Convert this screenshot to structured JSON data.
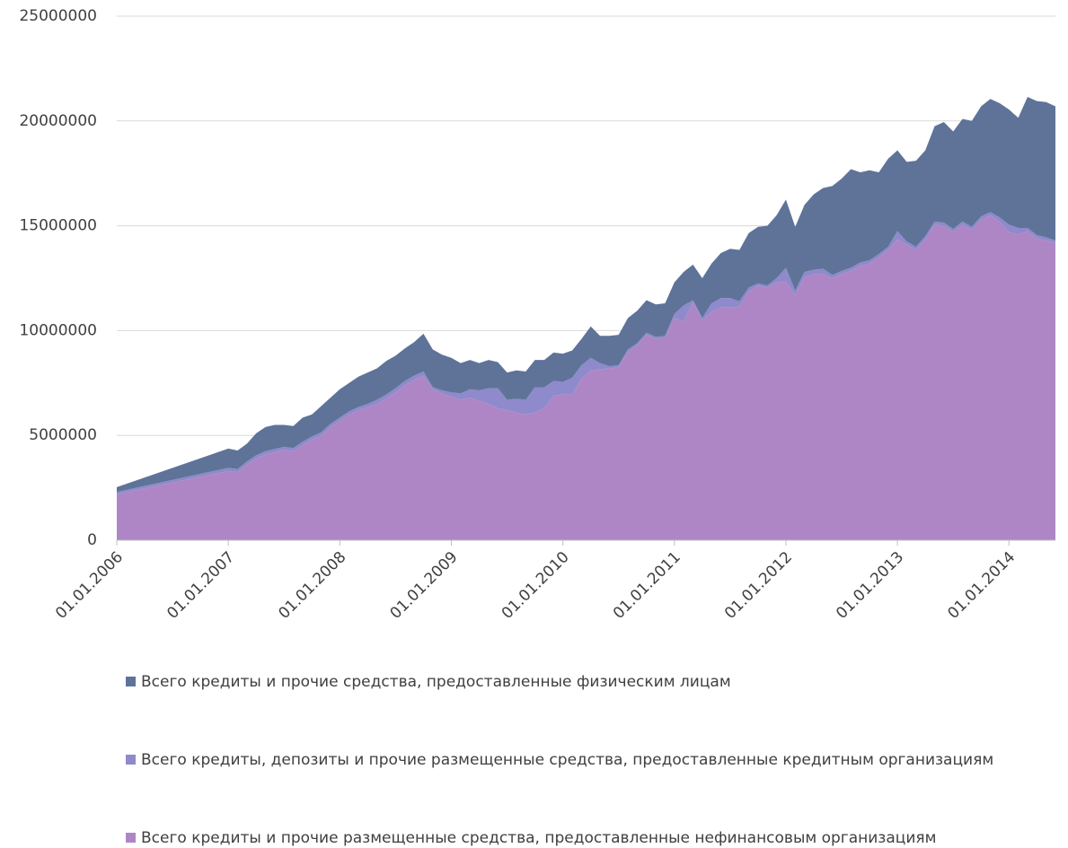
{
  "chart_data": {
    "type": "area",
    "stacked": true,
    "x": [
      "01.01.2006",
      "01.01.2007",
      "01.02.2007",
      "01.03.2007",
      "01.04.2007",
      "01.05.2007",
      "01.06.2007",
      "01.07.2007",
      "01.08.2007",
      "01.09.2007",
      "01.10.2007",
      "01.11.2007",
      "01.12.2007",
      "01.01.2008",
      "01.02.2008",
      "01.03.2008",
      "01.04.2008",
      "01.05.2008",
      "01.06.2008",
      "01.07.2008",
      "01.08.2008",
      "01.09.2008",
      "01.10.2008",
      "01.11.2008",
      "01.12.2008",
      "01.01.2009",
      "01.02.2009",
      "01.03.2009",
      "01.04.2009",
      "01.05.2009",
      "01.06.2009",
      "01.07.2009",
      "01.08.2009",
      "01.09.2009",
      "01.10.2009",
      "01.11.2009",
      "01.12.2009",
      "01.01.2010",
      "01.02.2010",
      "01.03.2010",
      "01.04.2010",
      "01.05.2010",
      "01.06.2010",
      "01.07.2010",
      "01.08.2010",
      "01.09.2010",
      "01.10.2010",
      "01.11.2010",
      "01.12.2010",
      "01.01.2011",
      "01.02.2011",
      "01.03.2011",
      "01.04.2011",
      "01.05.2011",
      "01.06.2011",
      "01.07.2011",
      "01.08.2011",
      "01.09.2011",
      "01.10.2011",
      "01.11.2011",
      "01.12.2011",
      "01.01.2012",
      "01.02.2012",
      "01.03.2012",
      "01.04.2012",
      "01.05.2012",
      "01.06.2012",
      "01.07.2012",
      "01.08.2012",
      "01.09.2012",
      "01.10.2012",
      "01.11.2012",
      "01.12.2012",
      "01.01.2013",
      "01.02.2013",
      "01.03.2013",
      "01.04.2013",
      "01.05.2013",
      "01.06.2013",
      "01.07.2013",
      "01.08.2013",
      "01.09.2013",
      "01.10.2013",
      "01.11.2013",
      "01.12.2013",
      "01.01.2014",
      "01.02.2014",
      "01.03.2014",
      "01.04.2014",
      "01.05.2014",
      "01.06.2014"
    ],
    "xlim": [
      "01.01.2006",
      "01.06.2014"
    ],
    "xticks": [
      "01.01.2006",
      "01.01.2007",
      "01.01.2008",
      "01.01.2009",
      "01.01.2010",
      "01.01.2011",
      "01.01.2012",
      "01.01.2013",
      "01.01.2014"
    ],
    "ylim": [
      0,
      25000000
    ],
    "yticks": [
      0,
      5000000,
      10000000,
      15000000,
      20000000,
      25000000
    ],
    "grid": true,
    "legend": "bottom",
    "series": [
      {
        "name": "Всего кредиты и прочие средства, предоставленные физическим лицам",
        "color": "#5f7399",
        "values": [
          230000,
          920000,
          880000,
          850000,
          1050000,
          1150000,
          1150000,
          1050000,
          1050000,
          1150000,
          1050000,
          1250000,
          1250000,
          1350000,
          1350000,
          1450000,
          1500000,
          1500000,
          1600000,
          1550000,
          1550000,
          1600000,
          1800000,
          1800000,
          1700000,
          1650000,
          1450000,
          1400000,
          1300000,
          1350000,
          1250000,
          1300000,
          1350000,
          1350000,
          1300000,
          1300000,
          1350000,
          1350000,
          1300000,
          1250000,
          1500000,
          1300000,
          1450000,
          1450000,
          1500000,
          1550000,
          1550000,
          1550000,
          1550000,
          1500000,
          1600000,
          1700000,
          1900000,
          1900000,
          2150000,
          2350000,
          2450000,
          2600000,
          2700000,
          2850000,
          3000000,
          3250000,
          3050000,
          3200000,
          3600000,
          3850000,
          4250000,
          4400000,
          4700000,
          4300000,
          4300000,
          3900000,
          4200000,
          3850000,
          3800000,
          4100000,
          4100000,
          4550000,
          4800000,
          4650000,
          4900000,
          5050000,
          5250000,
          5400000,
          5450000,
          5500000,
          5250000,
          6250000,
          6400000,
          6450000,
          6400000
        ]
      },
      {
        "name": "Всего кредиты, депозиты и прочие размещенные средства, предоставленные кредитным организациям",
        "color": "#8e8acb",
        "values": [
          100000,
          150000,
          150000,
          150000,
          150000,
          150000,
          150000,
          150000,
          150000,
          150000,
          150000,
          150000,
          150000,
          150000,
          150000,
          150000,
          150000,
          200000,
          200000,
          200000,
          200000,
          200000,
          200000,
          100000,
          150000,
          200000,
          300000,
          400000,
          500000,
          750000,
          950000,
          500000,
          650000,
          700000,
          1200000,
          1000000,
          700000,
          600000,
          800000,
          650000,
          600000,
          300000,
          100000,
          100000,
          100000,
          100000,
          100000,
          100000,
          100000,
          200000,
          750000,
          100000,
          100000,
          400000,
          450000,
          450000,
          250000,
          200000,
          100000,
          100000,
          200000,
          650000,
          200000,
          250000,
          200000,
          250000,
          150000,
          150000,
          150000,
          150000,
          150000,
          150000,
          150000,
          400000,
          150000,
          150000,
          150000,
          150000,
          150000,
          150000,
          150000,
          150000,
          150000,
          150000,
          200000,
          350000,
          300000,
          150000,
          150000,
          150000,
          100000
        ]
      },
      {
        "name": "Всего кредиты и прочие размещенные средства, предоставленные нефинансовым организациям",
        "color": "#ae86c6",
        "values": [
          2200000,
          3300000,
          3250000,
          3600000,
          3900000,
          4100000,
          4200000,
          4300000,
          4250000,
          4550000,
          4800000,
          5000000,
          5400000,
          5700000,
          6000000,
          6200000,
          6350000,
          6500000,
          6750000,
          7050000,
          7400000,
          7650000,
          7850000,
          7200000,
          7000000,
          6850000,
          6700000,
          6800000,
          6650000,
          6500000,
          6300000,
          6200000,
          6100000,
          6000000,
          6100000,
          6300000,
          6900000,
          6950000,
          6950000,
          7700000,
          8100000,
          8150000,
          8200000,
          8250000,
          9000000,
          9300000,
          9800000,
          9600000,
          9650000,
          10600000,
          10450000,
          11350000,
          10500000,
          10900000,
          11100000,
          11100000,
          11150000,
          11850000,
          12150000,
          12050000,
          12300000,
          12350000,
          11700000,
          12550000,
          12700000,
          12700000,
          12500000,
          12700000,
          12850000,
          13100000,
          13200000,
          13500000,
          13850000,
          14350000,
          14100000,
          13850000,
          14350000,
          15050000,
          15000000,
          14700000,
          15050000,
          14800000,
          15300000,
          15500000,
          15200000,
          14700000,
          14600000,
          14750000,
          14400000,
          14300000,
          14200000
        ]
      }
    ]
  }
}
